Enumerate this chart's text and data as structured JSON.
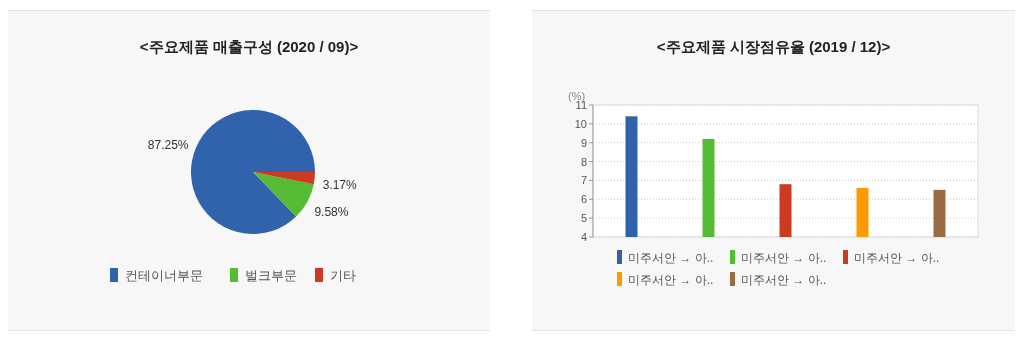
{
  "chart_data": [
    {
      "type": "pie",
      "title": "<주요제품 매출구성 (2020 / 09)>",
      "categories": [
        "컨테이너부문",
        "벌크부문",
        "기타"
      ],
      "values": [
        87.25,
        9.58,
        3.17
      ],
      "colors": [
        "#3162ac",
        "#55bb33",
        "#cc3a22"
      ],
      "value_labels": [
        "87.25%",
        "9.58%",
        "3.17%"
      ],
      "legend": "bottom"
    },
    {
      "type": "bar",
      "title": "<주요제품 시장점유율 (2019 / 12)>",
      "ylabel": "(%)",
      "categories": [
        null,
        null,
        null,
        null,
        null
      ],
      "series": [
        {
          "name": "미주서안 → 아..",
          "color": "#3162ac",
          "values": [
            10.4,
            null,
            null,
            null,
            null
          ]
        },
        {
          "name": "미주서안 → 아..",
          "color": "#55bb33",
          "values": [
            null,
            9.2,
            null,
            null,
            null
          ]
        },
        {
          "name": "미주서안 → 아..",
          "color": "#cc3a22",
          "values": [
            null,
            null,
            6.8,
            null,
            null
          ]
        },
        {
          "name": "미주서안 → 아..",
          "color": "#ff9900",
          "values": [
            null,
            null,
            null,
            6.6,
            null
          ]
        },
        {
          "name": "미주서안 → 아..",
          "color": "#996c44",
          "values": [
            null,
            null,
            null,
            null,
            6.5
          ]
        }
      ],
      "ylim": [
        4,
        11
      ],
      "yticks": [
        4,
        5,
        6,
        7,
        8,
        9,
        10,
        11
      ],
      "grid": "y",
      "legend": "bottom"
    }
  ]
}
